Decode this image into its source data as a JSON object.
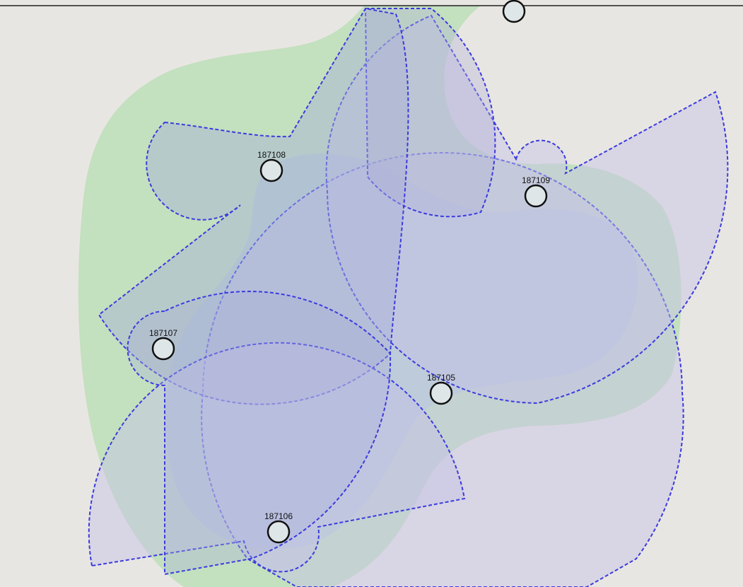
{
  "nodes": [
    {
      "label": "187108"
    },
    {
      "label": "187109"
    },
    {
      "label": "187107"
    },
    {
      "label": "187105"
    },
    {
      "label": "187106"
    },
    {}
  ]
}
